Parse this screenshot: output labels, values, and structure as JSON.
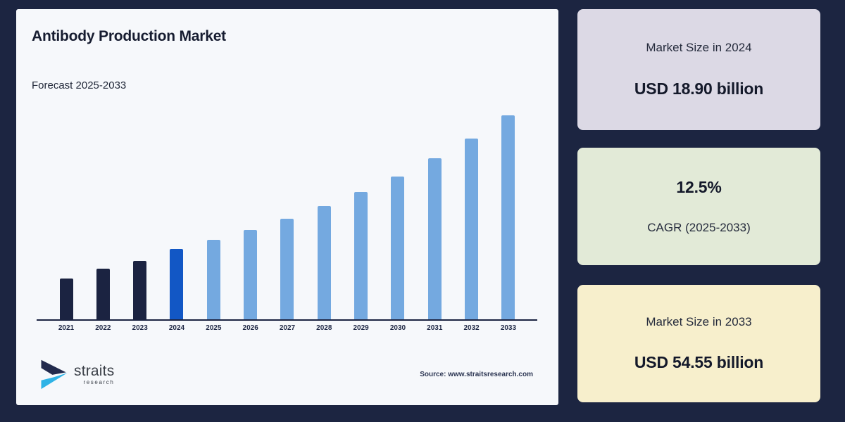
{
  "page": {
    "background": "#1c2541"
  },
  "panel": {
    "background": "#f6f8fb",
    "title": "Antibody Production Market",
    "subtitle": "Forecast 2025-2033",
    "source": "Source: www.straitsresearch.com",
    "logo": {
      "name": "straits",
      "sub": "research",
      "icon_navy": "#222a4d",
      "icon_cyan": "#2fb3e6"
    }
  },
  "chart_data": {
    "type": "bar",
    "title": "Antibody Production Market",
    "subtitle": "Forecast 2025-2033",
    "unit": "USD billion",
    "categories": [
      "2021",
      "2022",
      "2023",
      "2024",
      "2025",
      "2026",
      "2027",
      "2028",
      "2029",
      "2030",
      "2031",
      "2032",
      "2033"
    ],
    "values": [
      10.9,
      13.6,
      15.7,
      18.9,
      21.3,
      23.9,
      26.9,
      30.3,
      34.1,
      38.3,
      43.1,
      48.5,
      54.55
    ],
    "bar_color_keys": [
      "historical",
      "historical",
      "historical",
      "current",
      "forecast",
      "forecast",
      "forecast",
      "forecast",
      "forecast",
      "forecast",
      "forecast",
      "forecast",
      "forecast"
    ],
    "palette": {
      "historical": "#1b2341",
      "current": "#1257c5",
      "forecast": "#74a9e0"
    },
    "ylim": [
      0,
      55
    ],
    "grid": false,
    "legend": "none",
    "xlabel": "",
    "ylabel": ""
  },
  "cards": [
    {
      "line1": "Market Size in 2024",
      "line2": "USD 18.90 billion",
      "bg": "#dcd9e5"
    },
    {
      "line1": "12.5%",
      "line2": "CAGR (2025-2033)",
      "bg": "#e2ead7"
    },
    {
      "line1": "Market Size in 2033",
      "line2": "USD 54.55 billion",
      "bg": "#f7efcc"
    }
  ]
}
